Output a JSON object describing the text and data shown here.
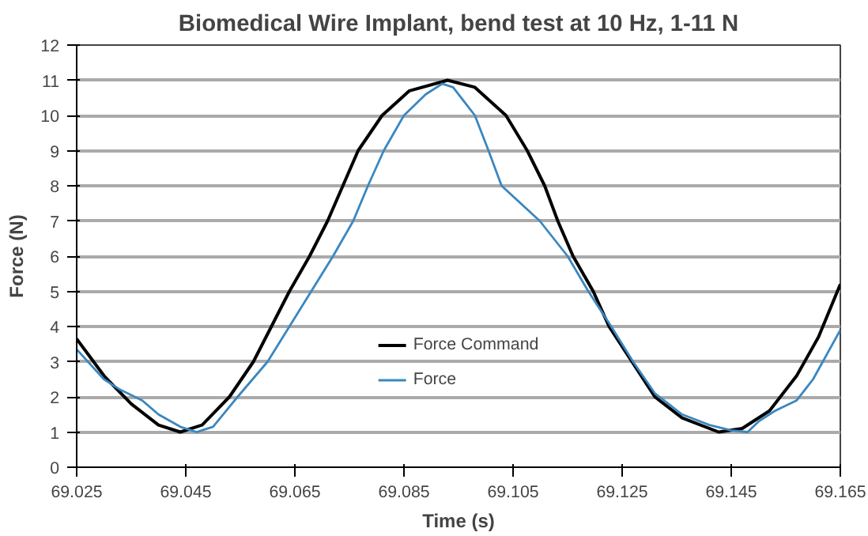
{
  "chart_data": {
    "type": "line",
    "title": "Biomedical Wire Implant, bend test at 10 Hz, 1-11 N",
    "xlabel": "Time (s)",
    "ylabel": "Force (N)",
    "xlim": [
      69.025,
      69.165
    ],
    "xticks": [
      69.025,
      69.045,
      69.065,
      69.085,
      69.105,
      69.125,
      69.145,
      69.165
    ],
    "ylim": [
      0,
      12
    ],
    "yticks": [
      0,
      1,
      2,
      3,
      4,
      5,
      6,
      7,
      8,
      9,
      10,
      11,
      12
    ],
    "grid": "y",
    "legend": "bottom",
    "marker": "none",
    "line_style": "solid",
    "series": [
      {
        "name": "Force Command",
        "color": "#000000",
        "x": [
          69.025,
          69.03,
          69.035,
          69.04,
          69.044,
          69.048,
          69.053,
          69.0574,
          69.0607,
          69.064,
          69.0677,
          69.071,
          69.0738,
          69.0766,
          69.081,
          69.086,
          69.093,
          69.098,
          69.1037,
          69.1076,
          69.1108,
          69.1132,
          69.116,
          69.1197,
          69.1226,
          69.1268,
          69.131,
          69.136,
          69.1427,
          69.147,
          69.152,
          69.157,
          69.161,
          69.165
        ],
        "values": [
          3.65,
          2.6,
          1.8,
          1.2,
          1.0,
          1.2,
          2,
          3,
          4,
          5,
          6,
          7,
          8,
          9,
          10,
          10.7,
          11.0,
          10.8,
          10,
          9,
          8,
          7,
          6,
          5,
          4,
          3,
          2,
          1.4,
          1.0,
          1.1,
          1.6,
          2.6,
          3.7,
          5.2
        ]
      },
      {
        "name": "Force",
        "color": "#3a87c0",
        "x": [
          69.025,
          69.03,
          69.033,
          69.037,
          69.04,
          69.044,
          69.047,
          69.05,
          69.0545,
          69.06,
          69.064,
          69.068,
          69.072,
          69.0757,
          69.0784,
          69.0813,
          69.085,
          69.089,
          69.092,
          69.094,
          69.0965,
          69.098,
          69.1005,
          69.1029,
          69.1099,
          69.115,
          69.1188,
          69.123,
          69.127,
          69.131,
          69.136,
          69.141,
          69.145,
          69.148,
          69.15,
          69.153,
          69.157,
          69.16,
          69.165
        ],
        "values": [
          3.35,
          2.5,
          2.2,
          1.9,
          1.5,
          1.15,
          1.0,
          1.15,
          2,
          3,
          4,
          5,
          6,
          7,
          8,
          9,
          10,
          10.6,
          10.9,
          10.8,
          10.3,
          10,
          9,
          8,
          7,
          6,
          5,
          4,
          3,
          2.1,
          1.5,
          1.2,
          1.05,
          1.0,
          1.3,
          1.6,
          1.9,
          2.5,
          3.9
        ]
      }
    ]
  }
}
